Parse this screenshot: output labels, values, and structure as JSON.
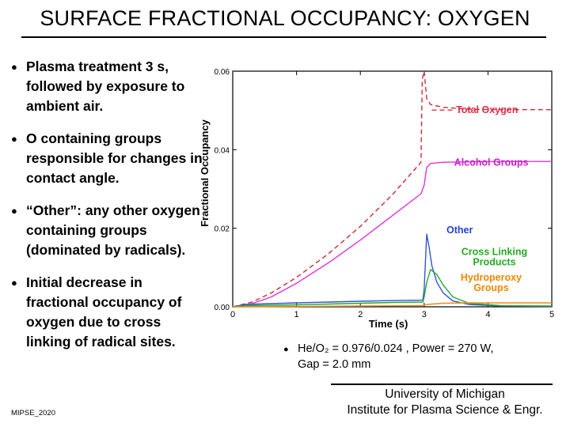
{
  "slide": {
    "title": "SURFACE FRACTIONAL OCCUPANCY: OXYGEN",
    "bullets": [
      "Plasma treatment 3 s, followed by exposure to ambient air.",
      "O containing groups responsible for changes in contact angle.",
      "“Other”: any other oxygen containing groups (dominated by radicals).",
      "Initial decrease in fractional occupancy of oxygen due to cross linking of radical sites."
    ],
    "footnote_line1": "He/O₂ = 0.976/0.024 , Power = 270 W,",
    "footnote_line2": "Gap = 2.0 mm",
    "affiliation_line1": "University of Michigan",
    "affiliation_line2": "Institute for Plasma Science & Engr.",
    "doc_id": "MIPSE_2020"
  },
  "chart_data": {
    "type": "line",
    "xlabel": "Time (s)",
    "ylabel": "Fractional Occupancy",
    "xlim": [
      0,
      5
    ],
    "ylim": [
      0,
      0.06
    ],
    "x_ticks": [
      "0",
      "1",
      "2",
      "3",
      "4",
      "5"
    ],
    "y_ticks": [
      "0.00",
      "0.02",
      "0.04",
      "0.06"
    ],
    "grid": false,
    "series": [
      {
        "name": "Total Oxygen",
        "color": "#cc2a3a",
        "style": "dashed",
        "label_color": "#e0304a",
        "points": [
          [
            0,
            0.0
          ],
          [
            0.3,
            0.0012
          ],
          [
            0.6,
            0.0035
          ],
          [
            1.0,
            0.0075
          ],
          [
            1.5,
            0.0135
          ],
          [
            2.0,
            0.0205
          ],
          [
            2.5,
            0.0285
          ],
          [
            2.95,
            0.0368
          ],
          [
            2.97,
            0.058
          ],
          [
            3.0,
            0.06
          ],
          [
            3.04,
            0.053
          ],
          [
            3.1,
            0.0515
          ],
          [
            3.3,
            0.0508
          ],
          [
            3.7,
            0.0503
          ],
          [
            4.2,
            0.0502
          ],
          [
            5.0,
            0.0502
          ]
        ]
      },
      {
        "name": "Alcohol Groups",
        "color": "#dd33dd",
        "style": "solid",
        "label_color": "#cc22cc",
        "points": [
          [
            0,
            0.0
          ],
          [
            0.3,
            0.0008
          ],
          [
            0.6,
            0.0025
          ],
          [
            1.0,
            0.006
          ],
          [
            1.5,
            0.0112
          ],
          [
            2.0,
            0.017
          ],
          [
            2.5,
            0.0232
          ],
          [
            2.95,
            0.0288
          ],
          [
            3.0,
            0.031
          ],
          [
            3.04,
            0.0355
          ],
          [
            3.1,
            0.0365
          ],
          [
            3.3,
            0.0368
          ],
          [
            3.7,
            0.0369
          ],
          [
            4.2,
            0.037
          ],
          [
            5.0,
            0.037
          ]
        ]
      },
      {
        "name": "Other",
        "color": "#3355cc",
        "style": "solid",
        "label_color": "#2244cc",
        "points": [
          [
            0,
            0.0
          ],
          [
            0.2,
            0.0006
          ],
          [
            0.6,
            0.0008
          ],
          [
            1.0,
            0.001
          ],
          [
            1.5,
            0.0012
          ],
          [
            2.0,
            0.0014
          ],
          [
            2.5,
            0.0016
          ],
          [
            2.98,
            0.0017
          ],
          [
            3.0,
            0.0045
          ],
          [
            3.04,
            0.0185
          ],
          [
            3.08,
            0.015
          ],
          [
            3.12,
            0.0105
          ],
          [
            3.2,
            0.0062
          ],
          [
            3.3,
            0.0035
          ],
          [
            3.45,
            0.0015
          ],
          [
            3.7,
            0.0006
          ],
          [
            4.2,
            0.0002
          ],
          [
            5.0,
            0.0001
          ]
        ]
      },
      {
        "name": "Cross Linking Products",
        "color": "#22aa33",
        "style": "solid",
        "label_color": "#22aa22",
        "points": [
          [
            0,
            0.0
          ],
          [
            0.2,
            0.0003
          ],
          [
            0.6,
            0.0004
          ],
          [
            1.0,
            0.0005
          ],
          [
            1.5,
            0.0007
          ],
          [
            2.0,
            0.0009
          ],
          [
            2.5,
            0.0011
          ],
          [
            2.98,
            0.0012
          ],
          [
            3.0,
            0.0025
          ],
          [
            3.04,
            0.0062
          ],
          [
            3.1,
            0.0095
          ],
          [
            3.2,
            0.0082
          ],
          [
            3.3,
            0.0055
          ],
          [
            3.45,
            0.0025
          ],
          [
            3.7,
            0.0009
          ],
          [
            4.2,
            0.0003
          ],
          [
            5.0,
            0.0002
          ]
        ]
      },
      {
        "name": "Hydroperoxy Groups",
        "color": "#ee8a1a",
        "style": "solid",
        "label_color": "#ee8800",
        "points": [
          [
            0,
            0.0
          ],
          [
            1.0,
            0.0001
          ],
          [
            2.0,
            0.0002
          ],
          [
            2.98,
            0.0003
          ],
          [
            3.05,
            0.0006
          ],
          [
            3.3,
            0.0009
          ],
          [
            3.7,
            0.001
          ],
          [
            4.2,
            0.001
          ],
          [
            5.0,
            0.001
          ]
        ]
      }
    ],
    "series_labels": {
      "total_oxygen": "Total Oxygen",
      "alcohol": "Alcohol Groups",
      "other": "Other",
      "cross_linking_1": "Cross Linking",
      "cross_linking_2": "Products",
      "hydroperoxy_1": "Hydroperoxy",
      "hydroperoxy_2": "Groups"
    }
  }
}
